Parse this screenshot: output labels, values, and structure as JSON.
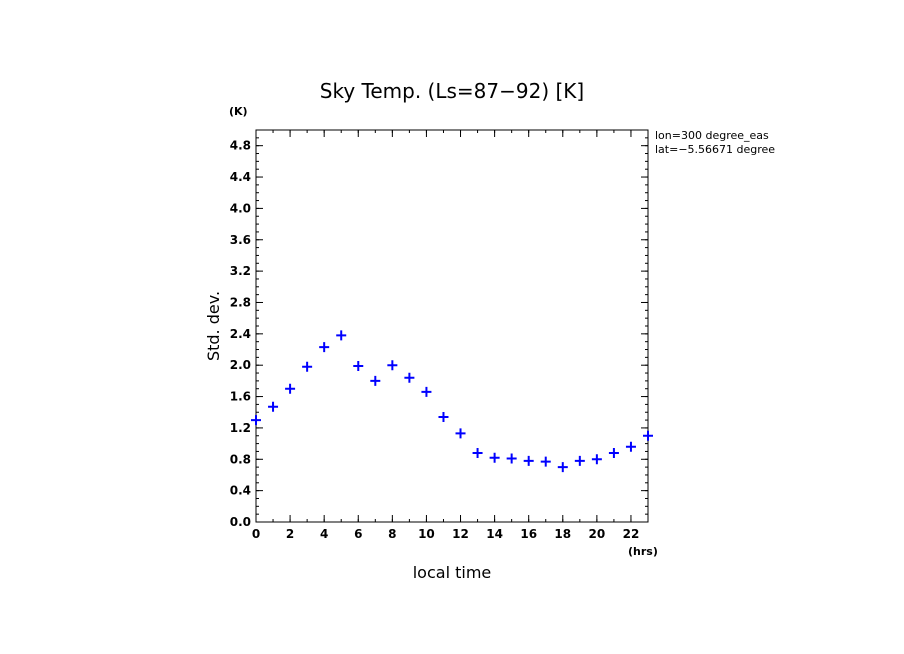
{
  "chart_data": {
    "type": "scatter",
    "title": "Sky Temp. (Ls=87−92) [K]",
    "xlabel": "local time",
    "ylabel": "Std. dev.",
    "x_unit": "(hrs)",
    "y_unit": "(K)",
    "xlim": [
      0,
      23
    ],
    "ylim": [
      0.0,
      5.0
    ],
    "x_ticks": [
      "0",
      "2",
      "4",
      "6",
      "8",
      "10",
      "12",
      "14",
      "16",
      "18",
      "20",
      "22"
    ],
    "y_ticks": [
      "0.0",
      "0.4",
      "0.8",
      "1.2",
      "1.6",
      "2.0",
      "2.4",
      "2.8",
      "3.2",
      "3.6",
      "4.0",
      "4.4",
      "4.8"
    ],
    "grid": false,
    "marker": "+",
    "color": "#0000ff",
    "info_lines": [
      "lon=300 degree_eas",
      "lat=−5.56671 degree"
    ],
    "series": [
      {
        "x": [
          0,
          1,
          2,
          3,
          4,
          5,
          6,
          7,
          8,
          9,
          10,
          11,
          12,
          13,
          14,
          15,
          16,
          17,
          18,
          19,
          20,
          21,
          22,
          23
        ],
        "y": [
          1.3,
          1.47,
          1.7,
          1.98,
          2.23,
          2.38,
          1.99,
          1.8,
          2.0,
          1.84,
          1.66,
          1.34,
          1.13,
          0.88,
          0.82,
          0.81,
          0.78,
          0.77,
          0.7,
          0.78,
          0.8,
          0.88,
          0.96,
          1.1
        ]
      }
    ]
  }
}
